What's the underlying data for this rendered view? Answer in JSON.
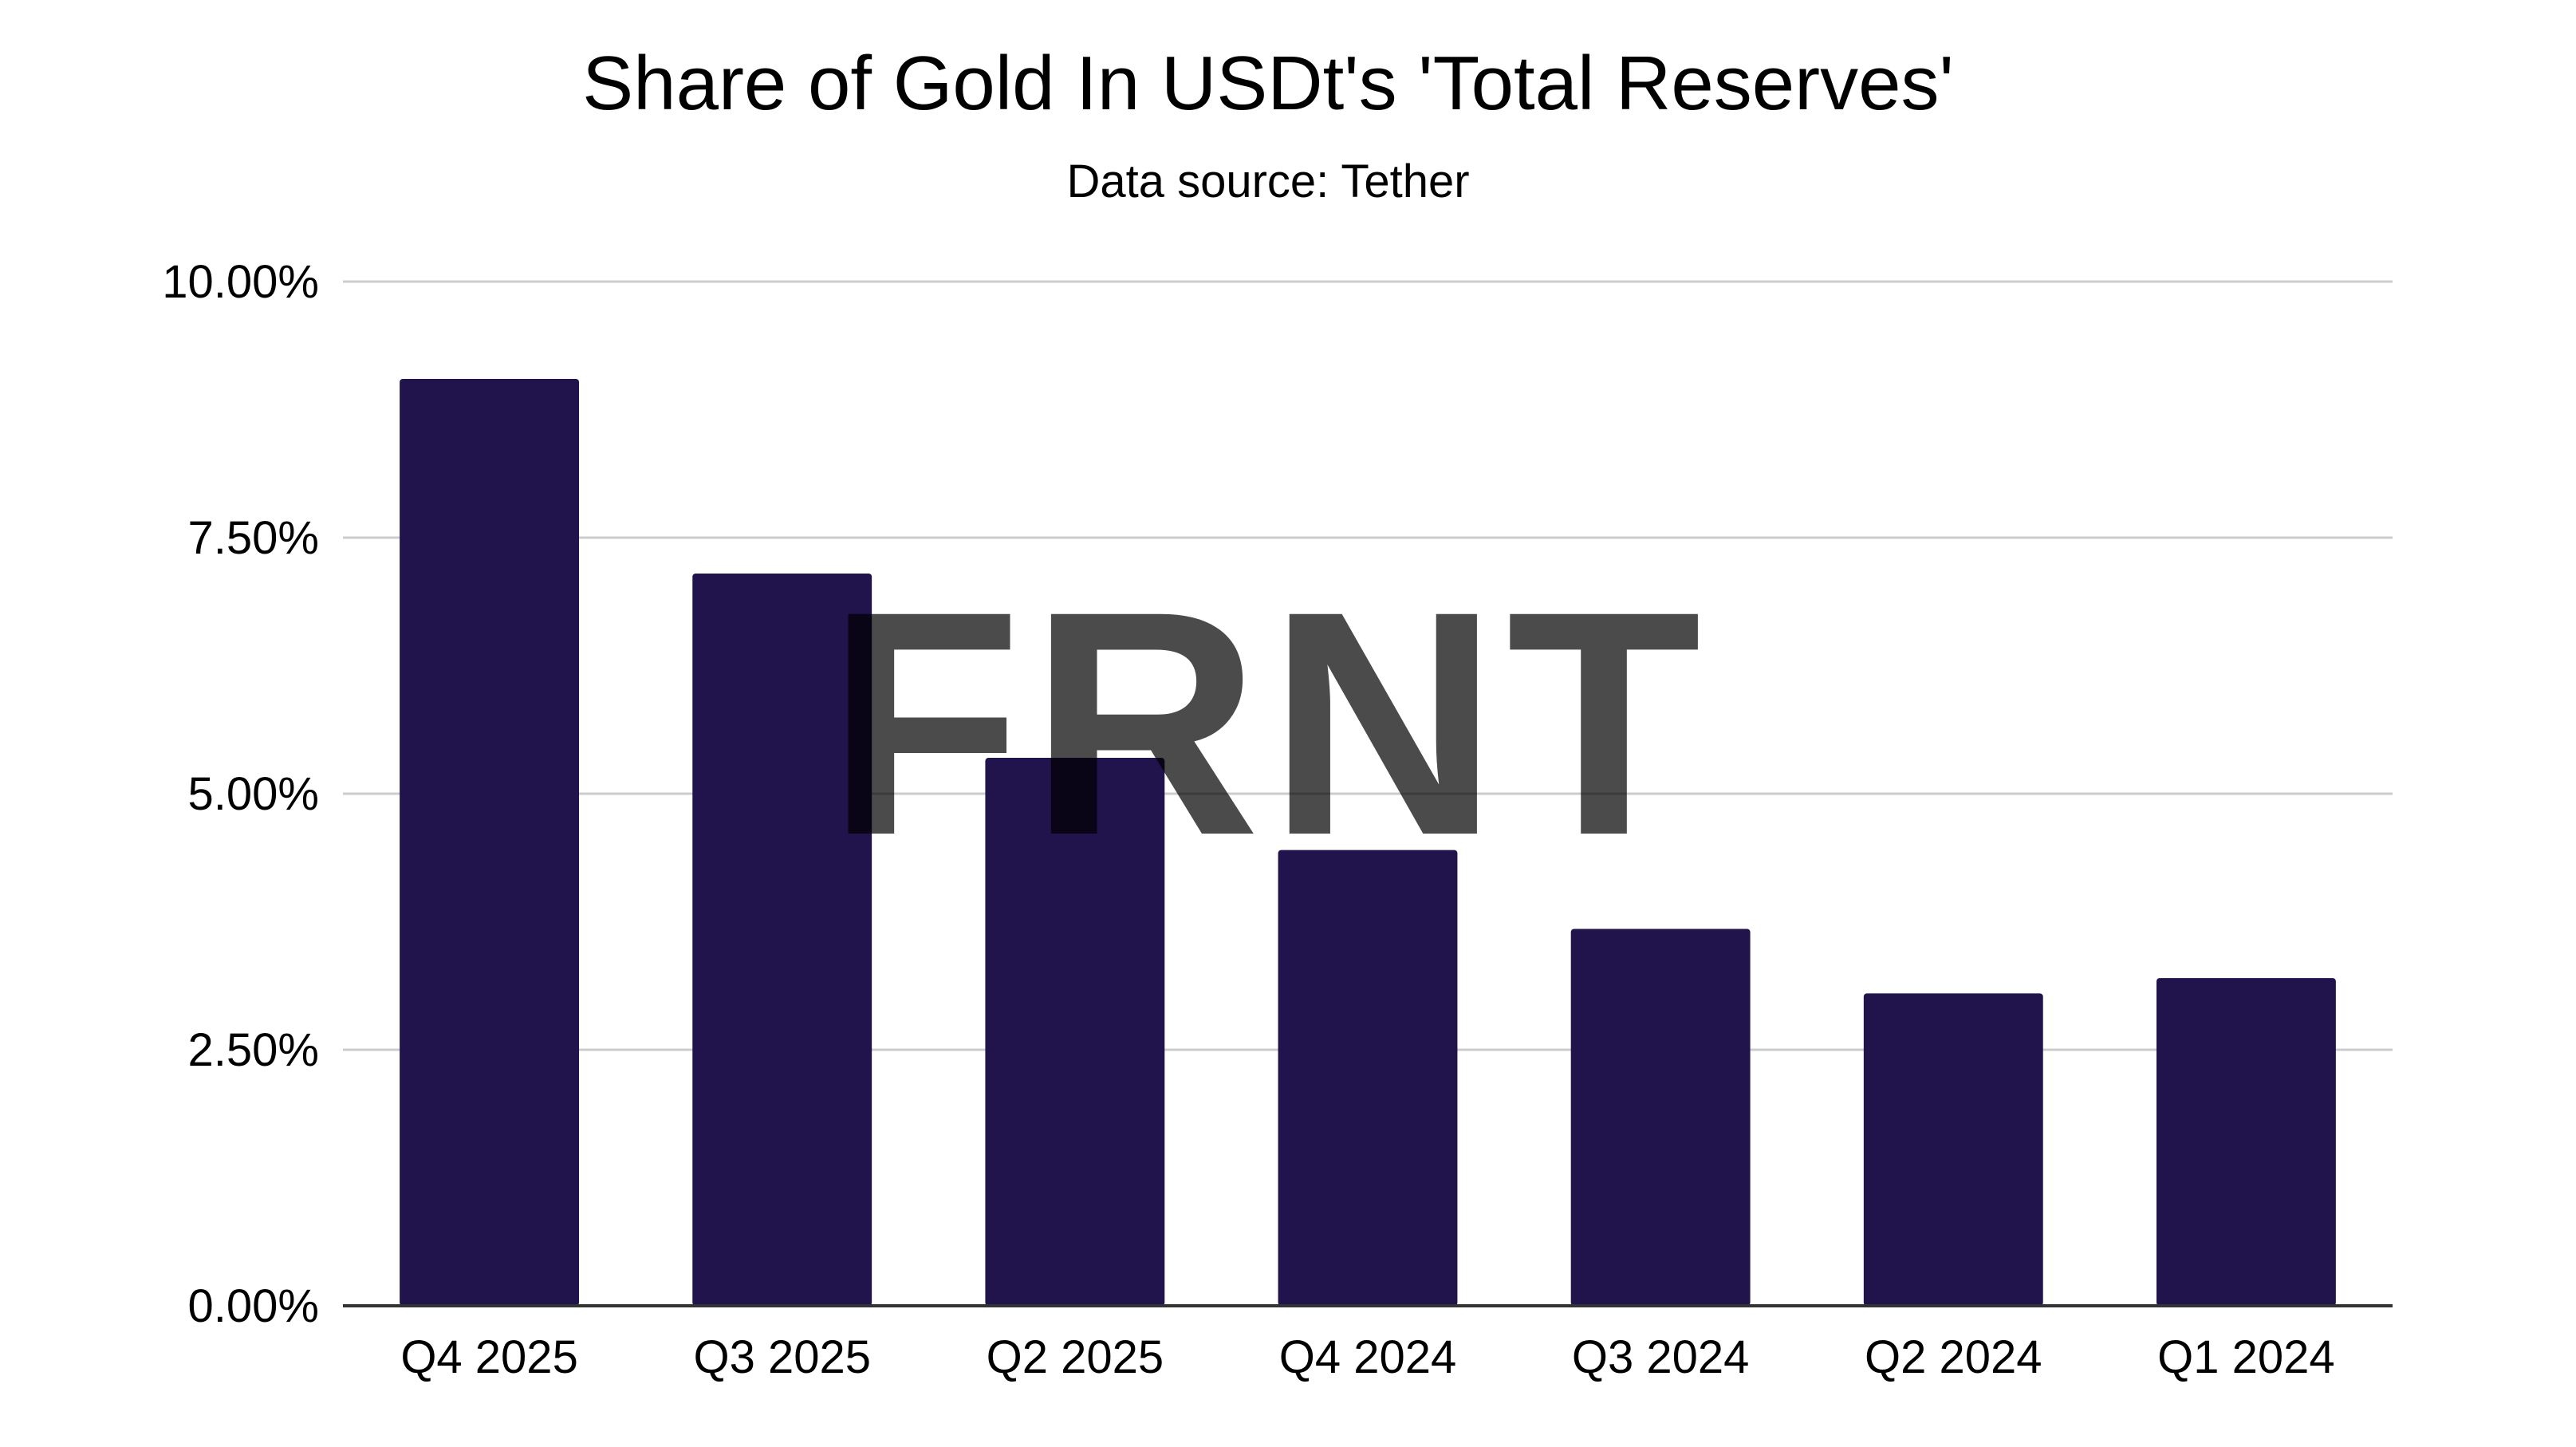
{
  "chart_data": {
    "type": "bar",
    "title": "Share of Gold In USDt's 'Total Reserves'",
    "subtitle": "Data source: Tether",
    "xlabel": "",
    "ylabel": "",
    "categories": [
      "Q4 2025",
      "Q3 2025",
      "Q2 2025",
      "Q4 2024",
      "Q3 2024",
      "Q2 2024",
      "Q1 2024"
    ],
    "series": [
      {
        "name": "Share of Gold",
        "values": [
          9.05,
          7.15,
          5.35,
          4.45,
          3.68,
          3.05,
          3.2
        ]
      }
    ],
    "ylim": [
      0,
      10
    ],
    "yticks": [
      0,
      2.5,
      5,
      7.5,
      10
    ],
    "ytick_labels": [
      "0.00%",
      "2.50%",
      "5.00%",
      "7.50%",
      "10.00%"
    ],
    "grid": true,
    "legend": "none",
    "bar_color": "#21134b",
    "grid_color": "#cccccc",
    "axis_color": "#333333"
  },
  "watermark": {
    "text": "FRNT",
    "color": "#d9d9d9"
  }
}
